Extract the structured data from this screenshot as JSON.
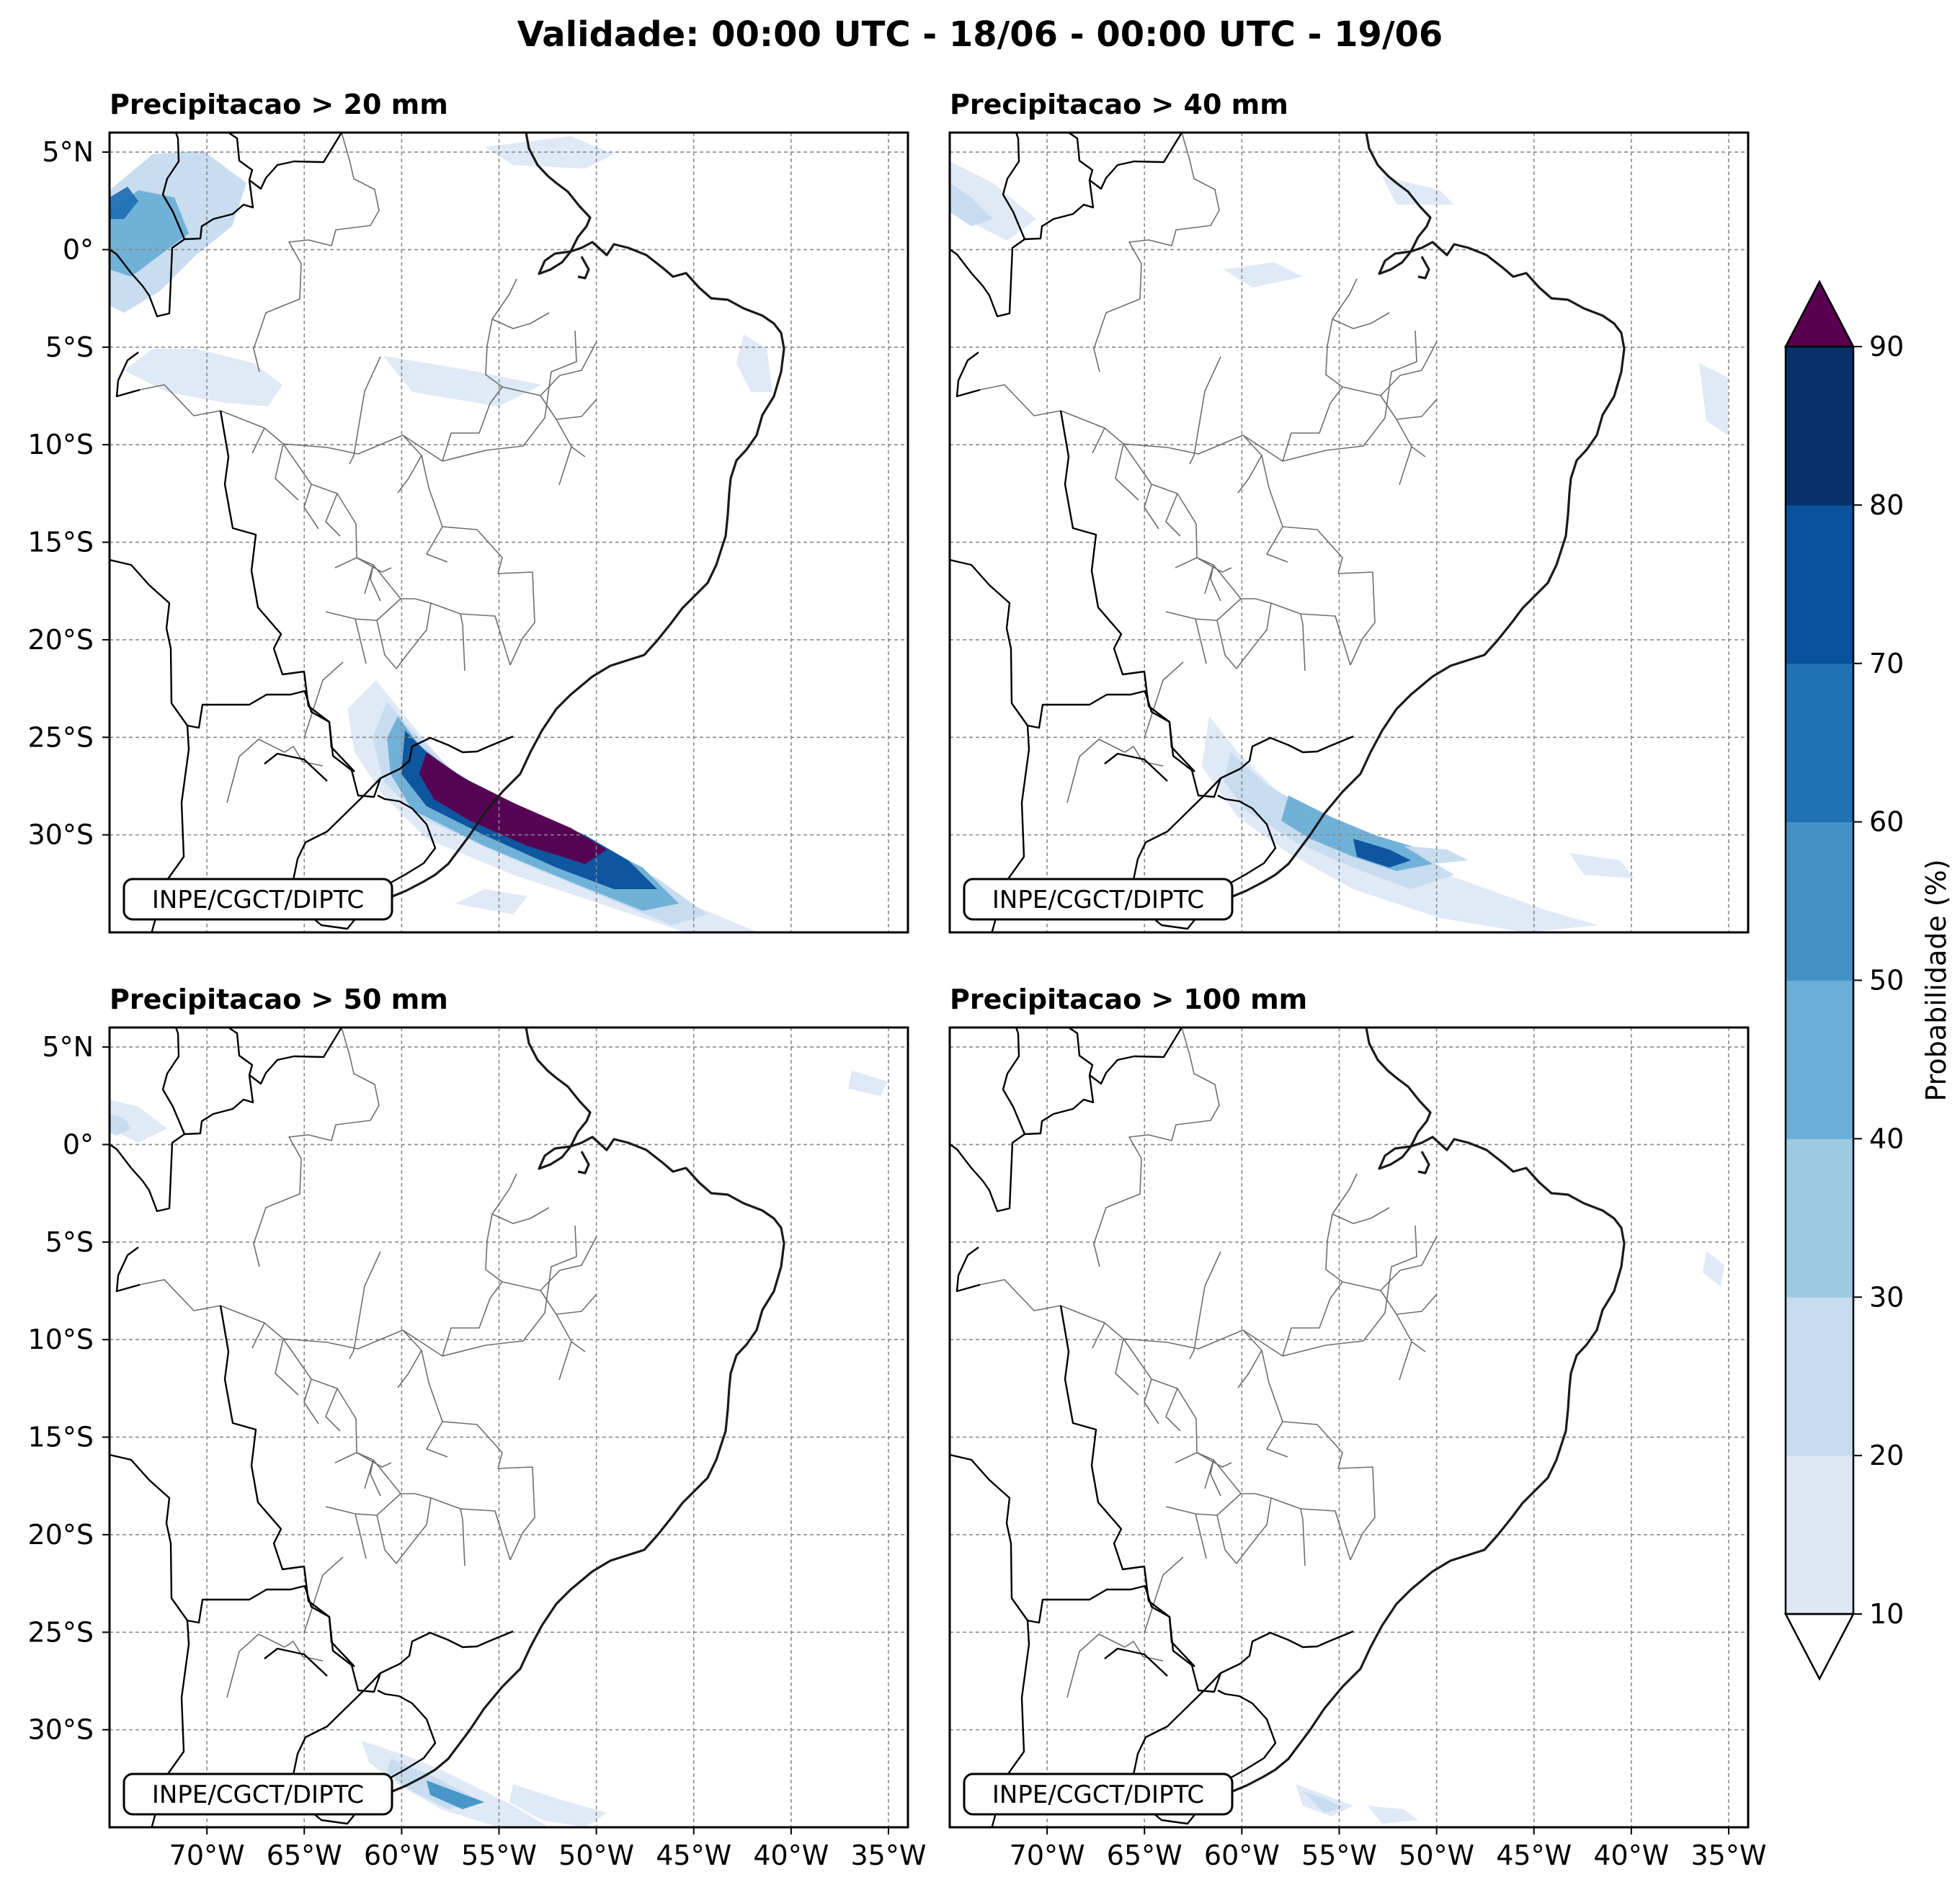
{
  "figure": {
    "title": "Validade: 00:00 UTC - 18/06 - 00:00 UTC - 19/06",
    "credit": "INPE/CGCT/DIPTC"
  },
  "map_extent": {
    "lon": [
      -75,
      -34
    ],
    "lat": [
      -35,
      6
    ]
  },
  "panels": [
    {
      "id": "p20",
      "title": "Precipitacao > 20 mm"
    },
    {
      "id": "p40",
      "title": "Precipitacao > 40 mm"
    },
    {
      "id": "p50",
      "title": "Precipitacao > 50 mm"
    },
    {
      "id": "p100",
      "title": "Precipitacao > 100 mm"
    }
  ],
  "axes": {
    "lat_ticks": [
      "5°N",
      "0°",
      "5°S",
      "10°S",
      "15°S",
      "20°S",
      "25°S",
      "30°S"
    ],
    "lat_values": [
      5,
      0,
      -5,
      -10,
      -15,
      -20,
      -25,
      -30
    ],
    "lon_ticks": [
      "70°W",
      "65°W",
      "60°W",
      "55°W",
      "50°W",
      "45°W",
      "40°W",
      "35°W"
    ],
    "lon_values": [
      -70,
      -65,
      -60,
      -55,
      -50,
      -45,
      -40,
      -35
    ]
  },
  "colorbar": {
    "label": "Probabilidade (%)",
    "ticks": [
      "10",
      "20",
      "30",
      "40",
      "50",
      "60",
      "70",
      "80",
      "90"
    ],
    "levels": [
      10,
      20,
      30,
      40,
      50,
      60,
      70,
      80,
      90
    ],
    "colors": [
      "#dee8f5",
      "#c6dbef",
      "#9ecae1",
      "#6baed6",
      "#4292c6",
      "#2171b5",
      "#08519c",
      "#08306b"
    ],
    "over_color": "#5a0050",
    "under_color": "#ffffff"
  }
}
